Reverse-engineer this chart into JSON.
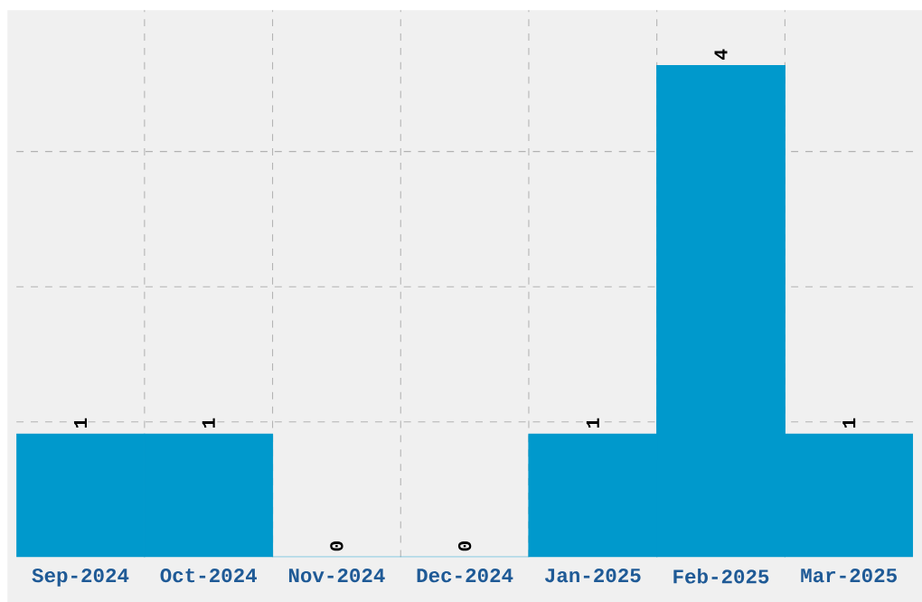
{
  "chart_data": {
    "type": "bar",
    "categories": [
      "Sep-2024",
      "Oct-2024",
      "Nov-2024",
      "Dec-2024",
      "Jan-2025",
      "Feb-2025",
      "Mar-2025"
    ],
    "values": [
      1,
      1,
      0,
      0,
      1,
      4,
      1
    ],
    "color": "#0099cc",
    "data_labels": true,
    "grid": true,
    "tick_labels": "x",
    "ylim": [
      0,
      4.45
    ],
    "yticks": [
      {
        "value": 1.1,
        "label": null
      },
      {
        "value": 2.2,
        "label": null
      },
      {
        "value": 3.3,
        "label": null
      }
    ]
  }
}
